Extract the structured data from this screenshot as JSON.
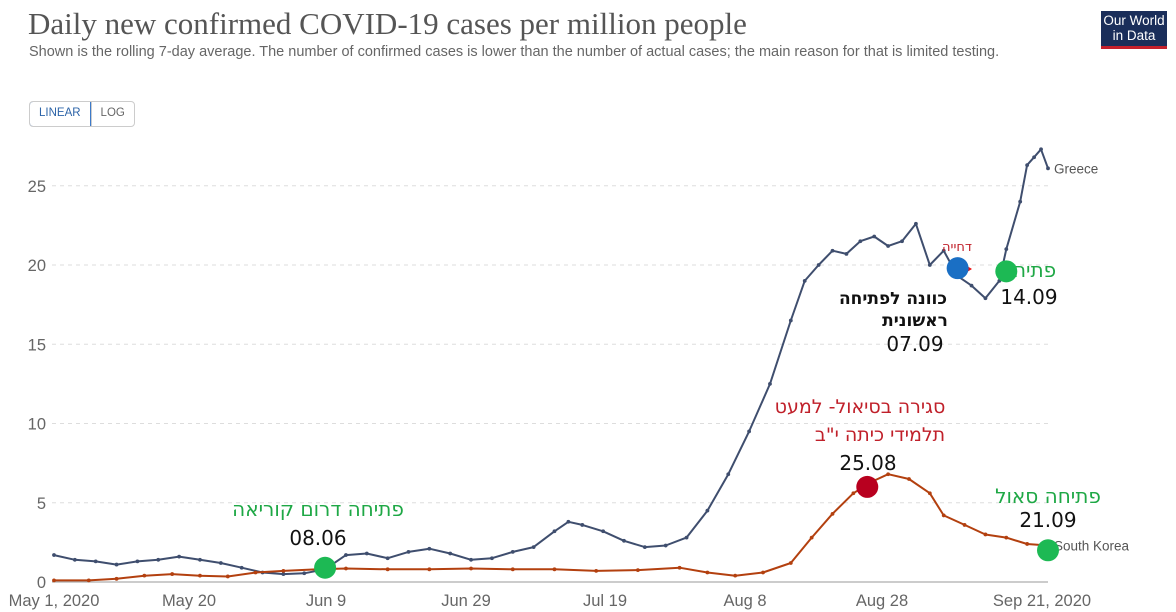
{
  "header": {
    "title": "Daily new confirmed COVID-19 cases per million people",
    "subtitle": "Shown is the rolling 7-day average. The number of confirmed cases is lower than the number of actual cases; the main reason for that is limited testing.",
    "logo_line1": "Our World",
    "logo_line2": "in Data"
  },
  "controls": {
    "linear_label": "LINEAR",
    "log_label": "LOG",
    "active_scale": "linear"
  },
  "colors": {
    "greece": "#3f4e6e",
    "south_korea": "#b3400f",
    "grid": "#dddddd",
    "marker_green": "#1db954",
    "marker_blue": "#1a6fc4",
    "marker_red": "#b8001f",
    "arrow": "#ee1111"
  },
  "chart_data": {
    "type": "line",
    "title": "Daily new confirmed COVID-19 cases per million people",
    "x_axis": {
      "type": "date",
      "range": [
        "2020-05-01",
        "2020-09-21"
      ],
      "tick_labels": [
        "May 1, 2020",
        "May 20",
        "Jun 9",
        "Jun 29",
        "Jul 19",
        "Aug 8",
        "Aug 28",
        "Sep 21, 2020"
      ]
    },
    "y_axis": {
      "range": [
        0,
        27.5
      ],
      "ticks": [
        0,
        5,
        10,
        15,
        20,
        25
      ],
      "grid": true,
      "scale": "linear"
    },
    "series": [
      {
        "name": "Greece",
        "color": "#3f4e6e",
        "points": [
          [
            "2020-05-01",
            1.7
          ],
          [
            "2020-05-04",
            1.4
          ],
          [
            "2020-05-07",
            1.3
          ],
          [
            "2020-05-10",
            1.1
          ],
          [
            "2020-05-13",
            1.3
          ],
          [
            "2020-05-16",
            1.4
          ],
          [
            "2020-05-19",
            1.6
          ],
          [
            "2020-05-22",
            1.4
          ],
          [
            "2020-05-25",
            1.2
          ],
          [
            "2020-05-28",
            0.9
          ],
          [
            "2020-05-31",
            0.6
          ],
          [
            "2020-06-03",
            0.5
          ],
          [
            "2020-06-06",
            0.55
          ],
          [
            "2020-06-09",
            0.8
          ],
          [
            "2020-06-12",
            1.7
          ],
          [
            "2020-06-15",
            1.8
          ],
          [
            "2020-06-18",
            1.5
          ],
          [
            "2020-06-21",
            1.9
          ],
          [
            "2020-06-24",
            2.1
          ],
          [
            "2020-06-27",
            1.8
          ],
          [
            "2020-06-30",
            1.4
          ],
          [
            "2020-07-03",
            1.5
          ],
          [
            "2020-07-06",
            1.9
          ],
          [
            "2020-07-09",
            2.2
          ],
          [
            "2020-07-12",
            3.2
          ],
          [
            "2020-07-14",
            3.8
          ],
          [
            "2020-07-16",
            3.6
          ],
          [
            "2020-07-19",
            3.2
          ],
          [
            "2020-07-22",
            2.6
          ],
          [
            "2020-07-25",
            2.2
          ],
          [
            "2020-07-28",
            2.3
          ],
          [
            "2020-07-31",
            2.8
          ],
          [
            "2020-08-03",
            4.5
          ],
          [
            "2020-08-06",
            6.8
          ],
          [
            "2020-08-09",
            9.5
          ],
          [
            "2020-08-12",
            12.5
          ],
          [
            "2020-08-15",
            16.5
          ],
          [
            "2020-08-17",
            19.0
          ],
          [
            "2020-08-19",
            20.0
          ],
          [
            "2020-08-21",
            20.9
          ],
          [
            "2020-08-23",
            20.7
          ],
          [
            "2020-08-25",
            21.5
          ],
          [
            "2020-08-27",
            21.8
          ],
          [
            "2020-08-29",
            21.2
          ],
          [
            "2020-08-31",
            21.5
          ],
          [
            "2020-09-02",
            22.6
          ],
          [
            "2020-09-04",
            20.0
          ],
          [
            "2020-09-06",
            20.9
          ],
          [
            "2020-09-08",
            19.3
          ],
          [
            "2020-09-10",
            18.7
          ],
          [
            "2020-09-12",
            17.9
          ],
          [
            "2020-09-14",
            19.0
          ],
          [
            "2020-09-15",
            21.0
          ],
          [
            "2020-09-17",
            24.0
          ],
          [
            "2020-09-18",
            26.3
          ],
          [
            "2020-09-19",
            26.8
          ],
          [
            "2020-09-20",
            27.3
          ],
          [
            "2020-09-21",
            26.1
          ]
        ]
      },
      {
        "name": "South Korea",
        "color": "#b3400f",
        "points": [
          [
            "2020-05-01",
            0.1
          ],
          [
            "2020-05-06",
            0.1
          ],
          [
            "2020-05-10",
            0.2
          ],
          [
            "2020-05-14",
            0.4
          ],
          [
            "2020-05-18",
            0.5
          ],
          [
            "2020-05-22",
            0.4
          ],
          [
            "2020-05-26",
            0.35
          ],
          [
            "2020-05-30",
            0.6
          ],
          [
            "2020-06-03",
            0.7
          ],
          [
            "2020-06-08",
            0.8
          ],
          [
            "2020-06-12",
            0.85
          ],
          [
            "2020-06-18",
            0.8
          ],
          [
            "2020-06-24",
            0.8
          ],
          [
            "2020-06-30",
            0.85
          ],
          [
            "2020-07-06",
            0.8
          ],
          [
            "2020-07-12",
            0.8
          ],
          [
            "2020-07-18",
            0.7
          ],
          [
            "2020-07-24",
            0.75
          ],
          [
            "2020-07-30",
            0.9
          ],
          [
            "2020-08-03",
            0.6
          ],
          [
            "2020-08-07",
            0.4
          ],
          [
            "2020-08-11",
            0.6
          ],
          [
            "2020-08-15",
            1.2
          ],
          [
            "2020-08-18",
            2.8
          ],
          [
            "2020-08-21",
            4.3
          ],
          [
            "2020-08-24",
            5.6
          ],
          [
            "2020-08-27",
            6.4
          ],
          [
            "2020-08-29",
            6.8
          ],
          [
            "2020-09-01",
            6.5
          ],
          [
            "2020-09-04",
            5.6
          ],
          [
            "2020-09-06",
            4.2
          ],
          [
            "2020-09-09",
            3.6
          ],
          [
            "2020-09-12",
            3.0
          ],
          [
            "2020-09-15",
            2.8
          ],
          [
            "2020-09-18",
            2.4
          ],
          [
            "2020-09-21",
            2.3
          ]
        ]
      }
    ],
    "annotations": [
      {
        "id": "korea_open",
        "date": "2020-06-09",
        "value": 0.9,
        "marker": "green",
        "text": "פתיחה דרום קוריאה",
        "date_text": "08.06"
      },
      {
        "id": "seoul_close",
        "date": "2020-08-26",
        "value": 6.0,
        "marker": "red",
        "text_lines": [
          "סגירה בסיאול- למעט",
          "תלמידי כיתה י\"ב"
        ],
        "date_text": "25.08"
      },
      {
        "id": "seoul_open",
        "date": "2020-09-21",
        "value": 2.0,
        "marker": "green",
        "text": "פתיחה סאול",
        "date_text": "21.09"
      },
      {
        "id": "greece_plan",
        "date": "2020-09-08",
        "value": 19.8,
        "marker": "blue",
        "text_lines": [
          "כוונה לפתיחה",
          "ראשונית"
        ],
        "date_text": "07.09"
      },
      {
        "id": "greece_delay",
        "text": "דחייה"
      },
      {
        "id": "greece_open",
        "date": "2020-09-15",
        "value": 19.6,
        "marker": "green",
        "text": "פתיחה",
        "date_text": "14.09"
      }
    ]
  }
}
